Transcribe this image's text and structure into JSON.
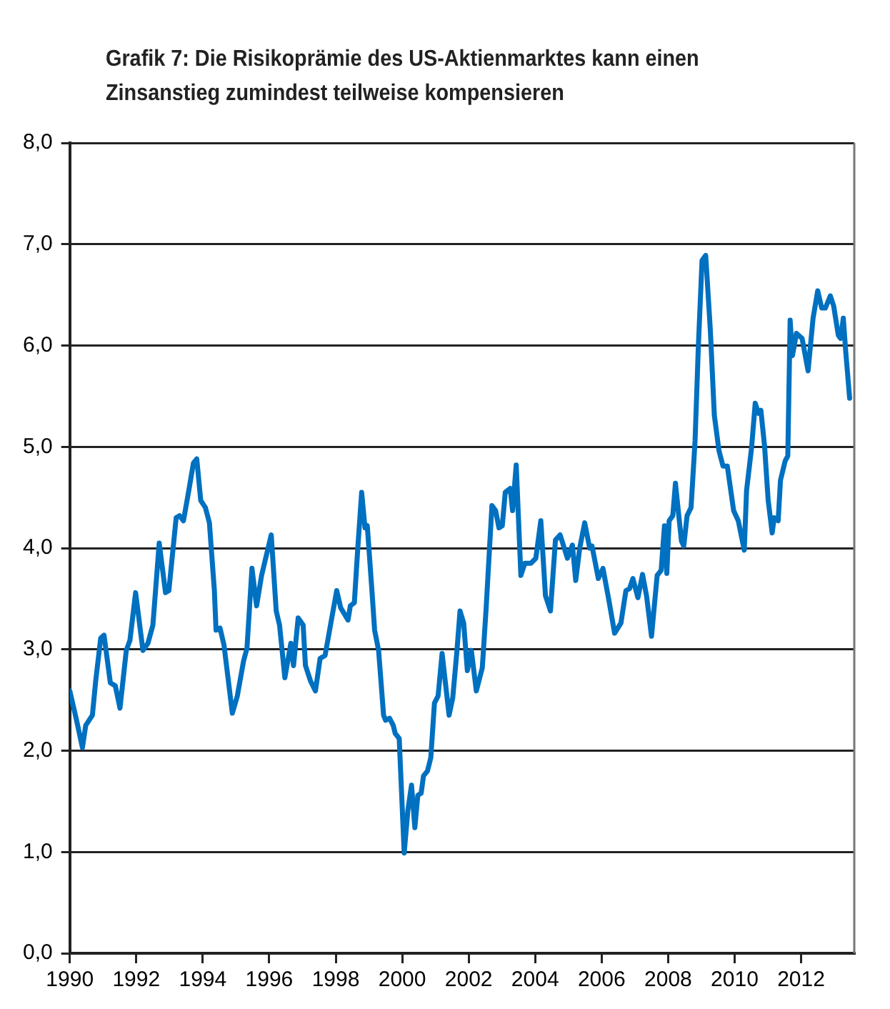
{
  "chart_data": {
    "type": "line",
    "title": "Grafik 7: Die Risikoprämie des US-Aktienmarktes kann einen Zinsanstieg zumindest teilweise kompensieren",
    "x": [
      1990.0,
      1990.19,
      1990.38,
      1990.48,
      1990.68,
      1990.78,
      1990.93,
      1991.03,
      1991.22,
      1991.37,
      1991.51,
      1991.7,
      1991.81,
      1991.98,
      1992.2,
      1992.35,
      1992.5,
      1992.69,
      1992.88,
      1992.98,
      1993.2,
      1993.3,
      1993.42,
      1993.57,
      1993.72,
      1993.82,
      1993.94,
      1994.08,
      1994.2,
      1994.35,
      1994.4,
      1994.52,
      1994.64,
      1994.89,
      1995.04,
      1995.23,
      1995.33,
      1995.48,
      1995.62,
      1995.77,
      1996.06,
      1996.21,
      1996.31,
      1996.47,
      1996.65,
      1996.73,
      1996.87,
      1997.02,
      1997.09,
      1997.24,
      1997.39,
      1997.53,
      1997.68,
      1997.87,
      1998.03,
      1998.15,
      1998.37,
      1998.44,
      1998.56,
      1998.66,
      1998.78,
      1998.88,
      1998.95,
      1999.1,
      1999.17,
      1999.29,
      1999.44,
      1999.5,
      1999.62,
      1999.73,
      1999.79,
      1999.91,
      2000.06,
      2000.17,
      2000.28,
      2000.38,
      2000.47,
      2000.57,
      2000.64,
      2000.76,
      2000.86,
      2000.97,
      2001.08,
      2001.2,
      2001.41,
      2001.52,
      2001.64,
      2001.74,
      2001.85,
      2001.96,
      2002.08,
      2002.23,
      2002.41,
      2002.52,
      2002.7,
      2002.81,
      2002.91,
      2003.01,
      2003.1,
      2003.25,
      2003.32,
      2003.43,
      2003.57,
      2003.69,
      2003.87,
      2004.02,
      2004.17,
      2004.31,
      2004.46,
      2004.61,
      2004.75,
      2004.97,
      2005.12,
      2005.22,
      2005.34,
      2005.49,
      2005.64,
      2005.71,
      2005.9,
      2006.04,
      2006.22,
      2006.39,
      2006.58,
      2006.73,
      2006.84,
      2006.94,
      2007.09,
      2007.23,
      2007.35,
      2007.5,
      2007.67,
      2007.79,
      2007.89,
      2007.96,
      2008.03,
      2008.14,
      2008.22,
      2008.4,
      2008.47,
      2008.57,
      2008.69,
      2008.81,
      2008.91,
      2009.02,
      2009.13,
      2009.27,
      2009.39,
      2009.53,
      2009.65,
      2009.78,
      2009.97,
      2010.11,
      2010.29,
      2010.36,
      2010.51,
      2010.62,
      2010.72,
      2010.79,
      2010.9,
      2011.01,
      2011.13,
      2011.19,
      2011.31,
      2011.38,
      2011.52,
      2011.6,
      2011.67,
      2011.74,
      2011.86,
      2012.03,
      2012.21,
      2012.36,
      2012.5,
      2012.62,
      2012.73,
      2012.88,
      2012.98,
      2013.12,
      2013.19,
      2013.27,
      2013.34,
      2013.46
    ],
    "values": [
      2.59,
      2.32,
      2.03,
      2.25,
      2.35,
      2.69,
      3.11,
      3.14,
      2.67,
      2.64,
      2.42,
      2.99,
      3.09,
      3.56,
      2.99,
      3.06,
      3.24,
      4.05,
      3.56,
      3.58,
      4.3,
      4.32,
      4.27,
      4.55,
      4.84,
      4.88,
      4.47,
      4.4,
      4.25,
      3.58,
      3.19,
      3.21,
      3.04,
      2.37,
      2.54,
      2.89,
      3.01,
      3.8,
      3.43,
      3.73,
      4.13,
      3.38,
      3.24,
      2.72,
      3.06,
      2.84,
      3.31,
      3.24,
      2.84,
      2.69,
      2.59,
      2.91,
      2.94,
      3.29,
      3.58,
      3.41,
      3.29,
      3.43,
      3.46,
      3.98,
      4.55,
      4.2,
      4.22,
      3.53,
      3.19,
      2.99,
      2.35,
      2.3,
      2.32,
      2.25,
      2.17,
      2.12,
      0.99,
      1.41,
      1.66,
      1.24,
      1.56,
      1.58,
      1.75,
      1.8,
      1.93,
      2.47,
      2.54,
      2.96,
      2.35,
      2.52,
      2.96,
      3.38,
      3.26,
      2.79,
      2.99,
      2.59,
      2.82,
      3.38,
      4.42,
      4.37,
      4.2,
      4.22,
      4.55,
      4.59,
      4.37,
      4.82,
      3.73,
      3.85,
      3.85,
      3.9,
      4.27,
      3.53,
      3.38,
      4.08,
      4.13,
      3.9,
      4.03,
      3.68,
      4.0,
      4.25,
      4.0,
      4.02,
      3.7,
      3.8,
      3.48,
      3.16,
      3.26,
      3.58,
      3.6,
      3.7,
      3.51,
      3.74,
      3.53,
      3.13,
      3.73,
      3.78,
      4.22,
      3.75,
      4.27,
      4.32,
      4.64,
      4.07,
      4.02,
      4.32,
      4.4,
      5.06,
      6.0,
      6.84,
      6.89,
      6.15,
      5.31,
      4.96,
      4.81,
      4.81,
      4.37,
      4.27,
      3.98,
      4.57,
      4.99,
      5.43,
      5.33,
      5.36,
      5.01,
      4.47,
      4.15,
      4.3,
      4.27,
      4.67,
      4.86,
      4.91,
      6.25,
      5.9,
      6.12,
      6.07,
      5.75,
      6.27,
      6.54,
      6.37,
      6.37,
      6.49,
      6.39,
      6.1,
      6.07,
      6.27,
      5.95,
      5.48
    ],
    "color": "#0070c0",
    "line_style": "solid",
    "marker": "none",
    "xlim": [
      1990,
      2013.6
    ],
    "xticks": [
      1990,
      1992,
      1994,
      1996,
      1998,
      2000,
      2002,
      2004,
      2006,
      2008,
      2010,
      2012
    ],
    "ylim": [
      0,
      8
    ],
    "yticks": [
      {
        "value": 0,
        "label": "0,0"
      },
      {
        "value": 1,
        "label": "1,0"
      },
      {
        "value": 2,
        "label": "2,0"
      },
      {
        "value": 3,
        "label": "3,0"
      },
      {
        "value": 4,
        "label": "4,0"
      },
      {
        "value": 5,
        "label": "5,0"
      },
      {
        "value": 6,
        "label": "6,0"
      },
      {
        "value": 7,
        "label": "7,0"
      },
      {
        "value": 8,
        "label": "8,0"
      }
    ],
    "grid": "y"
  }
}
